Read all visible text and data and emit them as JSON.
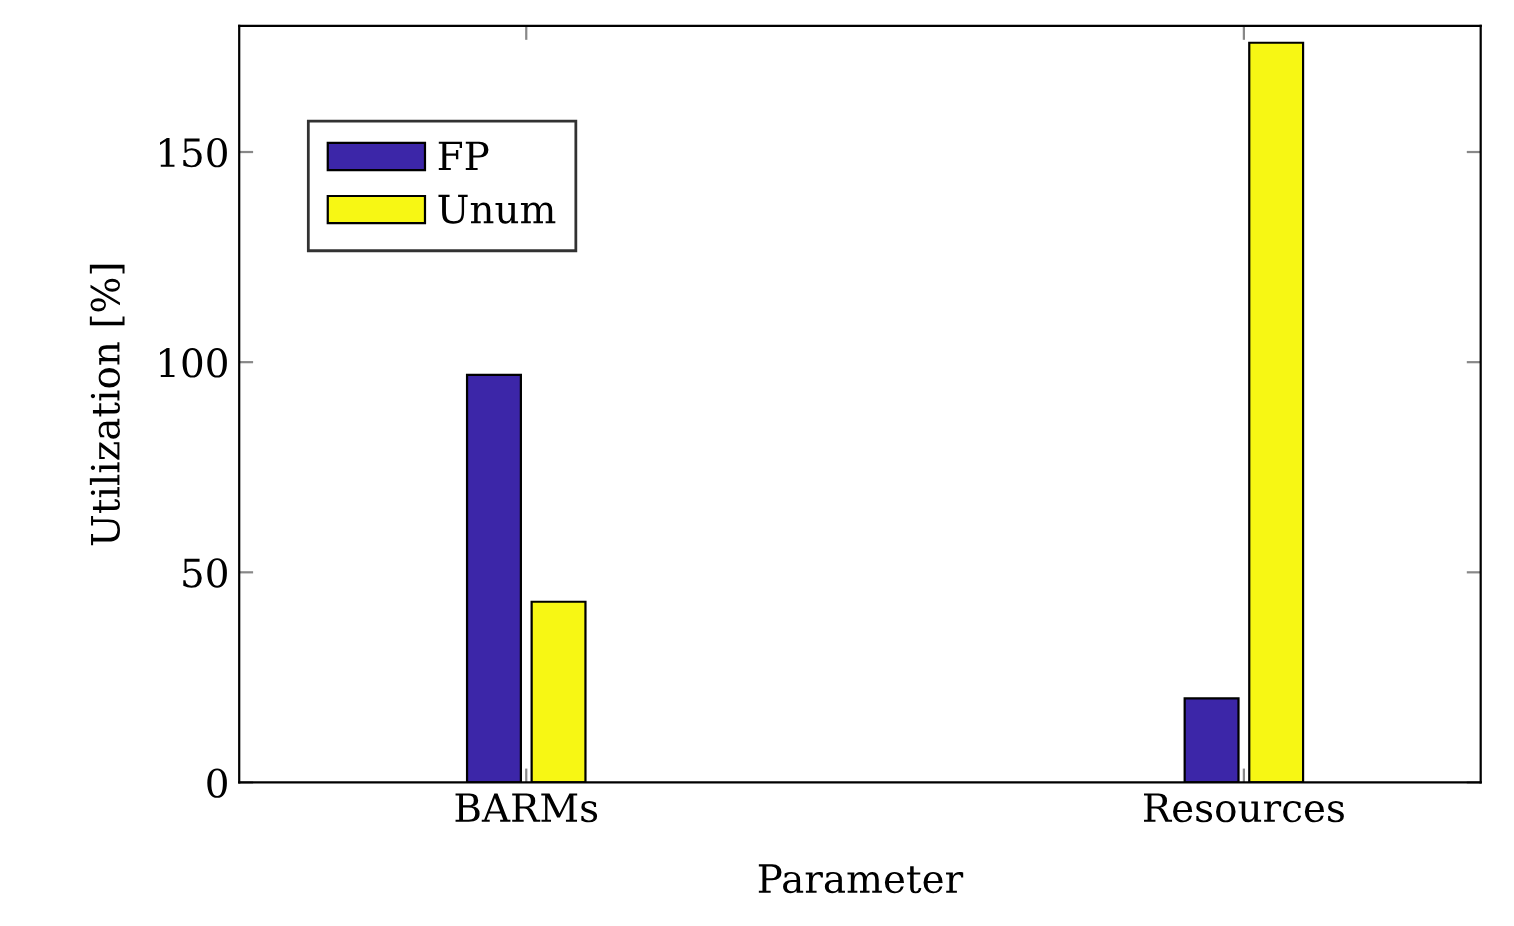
{
  "chart_data": {
    "type": "bar",
    "xlabel": "Parameter",
    "ylabel": "Utilization [%]",
    "categories": [
      "BARMs",
      "Resources"
    ],
    "series": [
      {
        "name": "FP",
        "color": "#3c26a8",
        "values": [
          97,
          20
        ]
      },
      {
        "name": "Unum",
        "color": "#f7f714",
        "values": [
          43,
          176
        ]
      }
    ],
    "ylim": [
      0,
      180
    ],
    "yticks": [
      0,
      50,
      100,
      150
    ],
    "grid": false,
    "legend": "top left"
  }
}
